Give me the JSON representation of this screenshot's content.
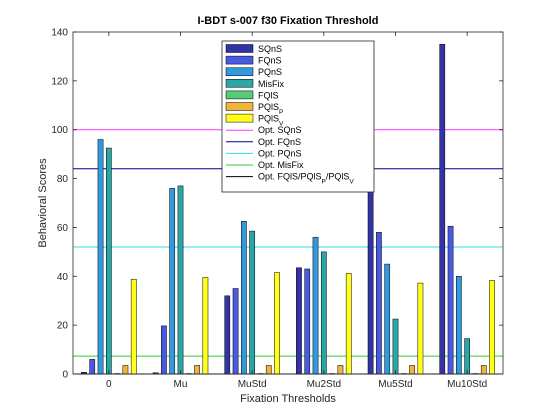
{
  "chart_data": {
    "type": "bar",
    "title": "I-BDT s-007 f30 Fixation Threshold",
    "xlabel": "Fixation Thresholds",
    "ylabel": "Behavioral Scores",
    "ylim": [
      0,
      140
    ],
    "yticks": [
      0,
      20,
      40,
      60,
      80,
      100,
      120,
      140
    ],
    "categories": [
      "0",
      "Mu",
      "MuStd",
      "Mu2Std",
      "Mu5Std",
      "Mu10Std"
    ],
    "grid": false,
    "legend_position": "top-center",
    "series": [
      {
        "name": "SQnS",
        "color": "#3333a6",
        "values": [
          0.7,
          0.5,
          32,
          43.5,
          113.5,
          135
        ]
      },
      {
        "name": "FQnS",
        "color": "#4a5ae0",
        "values": [
          6,
          19.7,
          35,
          43,
          58,
          60.5
        ]
      },
      {
        "name": "PQnS",
        "color": "#3399dd",
        "values": [
          96,
          76,
          62.5,
          56,
          45,
          40
        ]
      },
      {
        "name": "MisFix",
        "color": "#2aa6a6",
        "values": [
          92.5,
          77,
          58.5,
          50,
          22.5,
          14.5
        ]
      },
      {
        "name": "FQlS",
        "color": "#55cc77",
        "values": [
          0.2,
          0.2,
          0.2,
          0.2,
          0.2,
          0.2
        ]
      },
      {
        "name": "PQlS",
        "name_sub": "P",
        "color": "#f2b33d",
        "values": [
          3.5,
          3.5,
          3.5,
          3.5,
          3.5,
          3.5
        ]
      },
      {
        "name": "PQlS",
        "name_sub": "V",
        "color": "#ffff1a",
        "values": [
          38.8,
          39.5,
          41.5,
          41.2,
          37.2,
          38.3
        ]
      }
    ],
    "reference_lines": [
      {
        "name": "Opt. SQnS",
        "color": "#ff33ff",
        "value": 100
      },
      {
        "name": "Opt. FQnS",
        "color": "#00008b",
        "value": 84
      },
      {
        "name": "Opt. PQnS",
        "color": "#33dddd",
        "value": 52
      },
      {
        "name": "Opt. MisFix",
        "color": "#33cc33",
        "value": 7.3
      },
      {
        "name": "Opt. FQlS/PQlS",
        "name_sub": "P",
        "name_mid": "/PQlS",
        "name_sub2": "V",
        "color": "#000000",
        "value": 0
      }
    ]
  }
}
